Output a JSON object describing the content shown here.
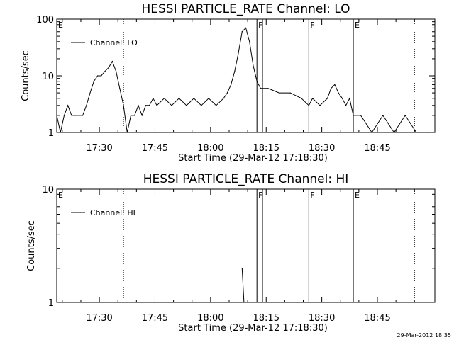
{
  "chart_data": [
    {
      "type": "line",
      "title": "HESSI PARTICLE_RATE Channel: LO",
      "xlabel": "Start Time (29-Mar-12 17:18:30)",
      "ylabel": "Counts/sec",
      "yscale": "log",
      "ylim": [
        1,
        100
      ],
      "y_ticks": [
        {
          "v": 1,
          "label": "1"
        },
        {
          "v": 10,
          "label": "10"
        },
        {
          "v": 100,
          "label": "100"
        }
      ],
      "xlim": [
        "17:18:30",
        "19:00:30"
      ],
      "x_ticks": [
        "17:30",
        "17:45",
        "18:00",
        "18:15",
        "18:30",
        "18:45"
      ],
      "grid": false,
      "legend_position": "top-left",
      "series": [
        {
          "name": "Channel: LO",
          "x": [
            "17:18:30",
            "17:19:30",
            "17:20:30",
            "17:21:30",
            "17:22:30",
            "17:23:30",
            "17:24:30",
            "17:25:30",
            "17:26:30",
            "17:27:30",
            "17:28:30",
            "17:29:30",
            "17:30:30",
            "17:31:30",
            "17:32:30",
            "17:33:30",
            "17:34:30",
            "17:35:30",
            "17:36:30",
            "17:37:30",
            "17:38:30",
            "17:39:30",
            "17:40:30",
            "17:41:30",
            "17:42:30",
            "17:43:30",
            "17:44:30",
            "17:45:30",
            "17:47:30",
            "17:49:30",
            "17:51:30",
            "17:53:30",
            "17:55:30",
            "17:57:30",
            "17:59:30",
            "18:01:30",
            "18:03:30",
            "18:04:30",
            "18:05:30",
            "18:06:30",
            "18:07:30",
            "18:08:30",
            "18:09:30",
            "18:10:30",
            "18:11:30",
            "18:12:30",
            "18:13:30",
            "18:15:30",
            "18:18:30",
            "18:21:30",
            "18:24:30",
            "18:26:30",
            "18:27:30",
            "18:29:30",
            "18:31:30",
            "18:32:30",
            "18:33:30",
            "18:34:30",
            "18:35:30",
            "18:36:30",
            "18:37:30",
            "18:38:30",
            "18:40:30",
            "18:43:30",
            "18:46:30",
            "18:49:30",
            "18:52:30",
            "18:55:30",
            "18:58:30",
            "19:00:30"
          ],
          "y": [
            2,
            1,
            2,
            3,
            2,
            2,
            2,
            2,
            3,
            5,
            8,
            10,
            10,
            12,
            14,
            18,
            12,
            6,
            3,
            1,
            2,
            2,
            3,
            2,
            3,
            3,
            4,
            3,
            4,
            3,
            4,
            3,
            4,
            3,
            4,
            3,
            4,
            5,
            7,
            12,
            25,
            60,
            70,
            40,
            15,
            8,
            6,
            6,
            5,
            5,
            4,
            3,
            4,
            3,
            4,
            6,
            7,
            5,
            4,
            3,
            4,
            2,
            2,
            1,
            2,
            1,
            2,
            1,
            1,
            1
          ]
        }
      ],
      "annotations": [
        {
          "label": "E",
          "x": "17:18:30",
          "style": "solid"
        },
        {
          "label": "",
          "x": "17:36:30",
          "style": "dotted"
        },
        {
          "label": "F",
          "x": "18:12:30",
          "style": "solid"
        },
        {
          "label": "",
          "x": "18:14:00",
          "style": "solid"
        },
        {
          "label": "F",
          "x": "18:26:30",
          "style": "solid"
        },
        {
          "label": "E",
          "x": "18:38:30",
          "style": "solid"
        },
        {
          "label": "",
          "x": "18:55:00",
          "style": "dotted"
        }
      ]
    },
    {
      "type": "line",
      "title": "HESSI PARTICLE_RATE Channel: HI",
      "xlabel": "Start Time (29-Mar-12 17:18:30)",
      "ylabel": "Counts/sec",
      "yscale": "log",
      "ylim": [
        1,
        10
      ],
      "y_ticks": [
        {
          "v": 1,
          "label": "1"
        },
        {
          "v": 10,
          "label": "10"
        }
      ],
      "xlim": [
        "17:18:30",
        "19:00:30"
      ],
      "x_ticks": [
        "17:30",
        "17:45",
        "18:00",
        "18:15",
        "18:30",
        "18:45"
      ],
      "grid": false,
      "legend_position": "top-left",
      "series": [
        {
          "name": "Channel: HI",
          "x": [
            "18:08:30",
            "18:09:00"
          ],
          "y": [
            2,
            1
          ]
        }
      ],
      "annotations": [
        {
          "label": "E",
          "x": "17:18:30",
          "style": "solid"
        },
        {
          "label": "",
          "x": "17:36:30",
          "style": "dotted"
        },
        {
          "label": "F",
          "x": "18:12:30",
          "style": "solid"
        },
        {
          "label": "",
          "x": "18:14:00",
          "style": "solid"
        },
        {
          "label": "F",
          "x": "18:26:30",
          "style": "solid"
        },
        {
          "label": "E",
          "x": "18:38:30",
          "style": "solid"
        },
        {
          "label": "",
          "x": "18:55:00",
          "style": "dotted"
        }
      ]
    }
  ],
  "footer": {
    "timestamp": "29-Mar-2012 18:35"
  }
}
